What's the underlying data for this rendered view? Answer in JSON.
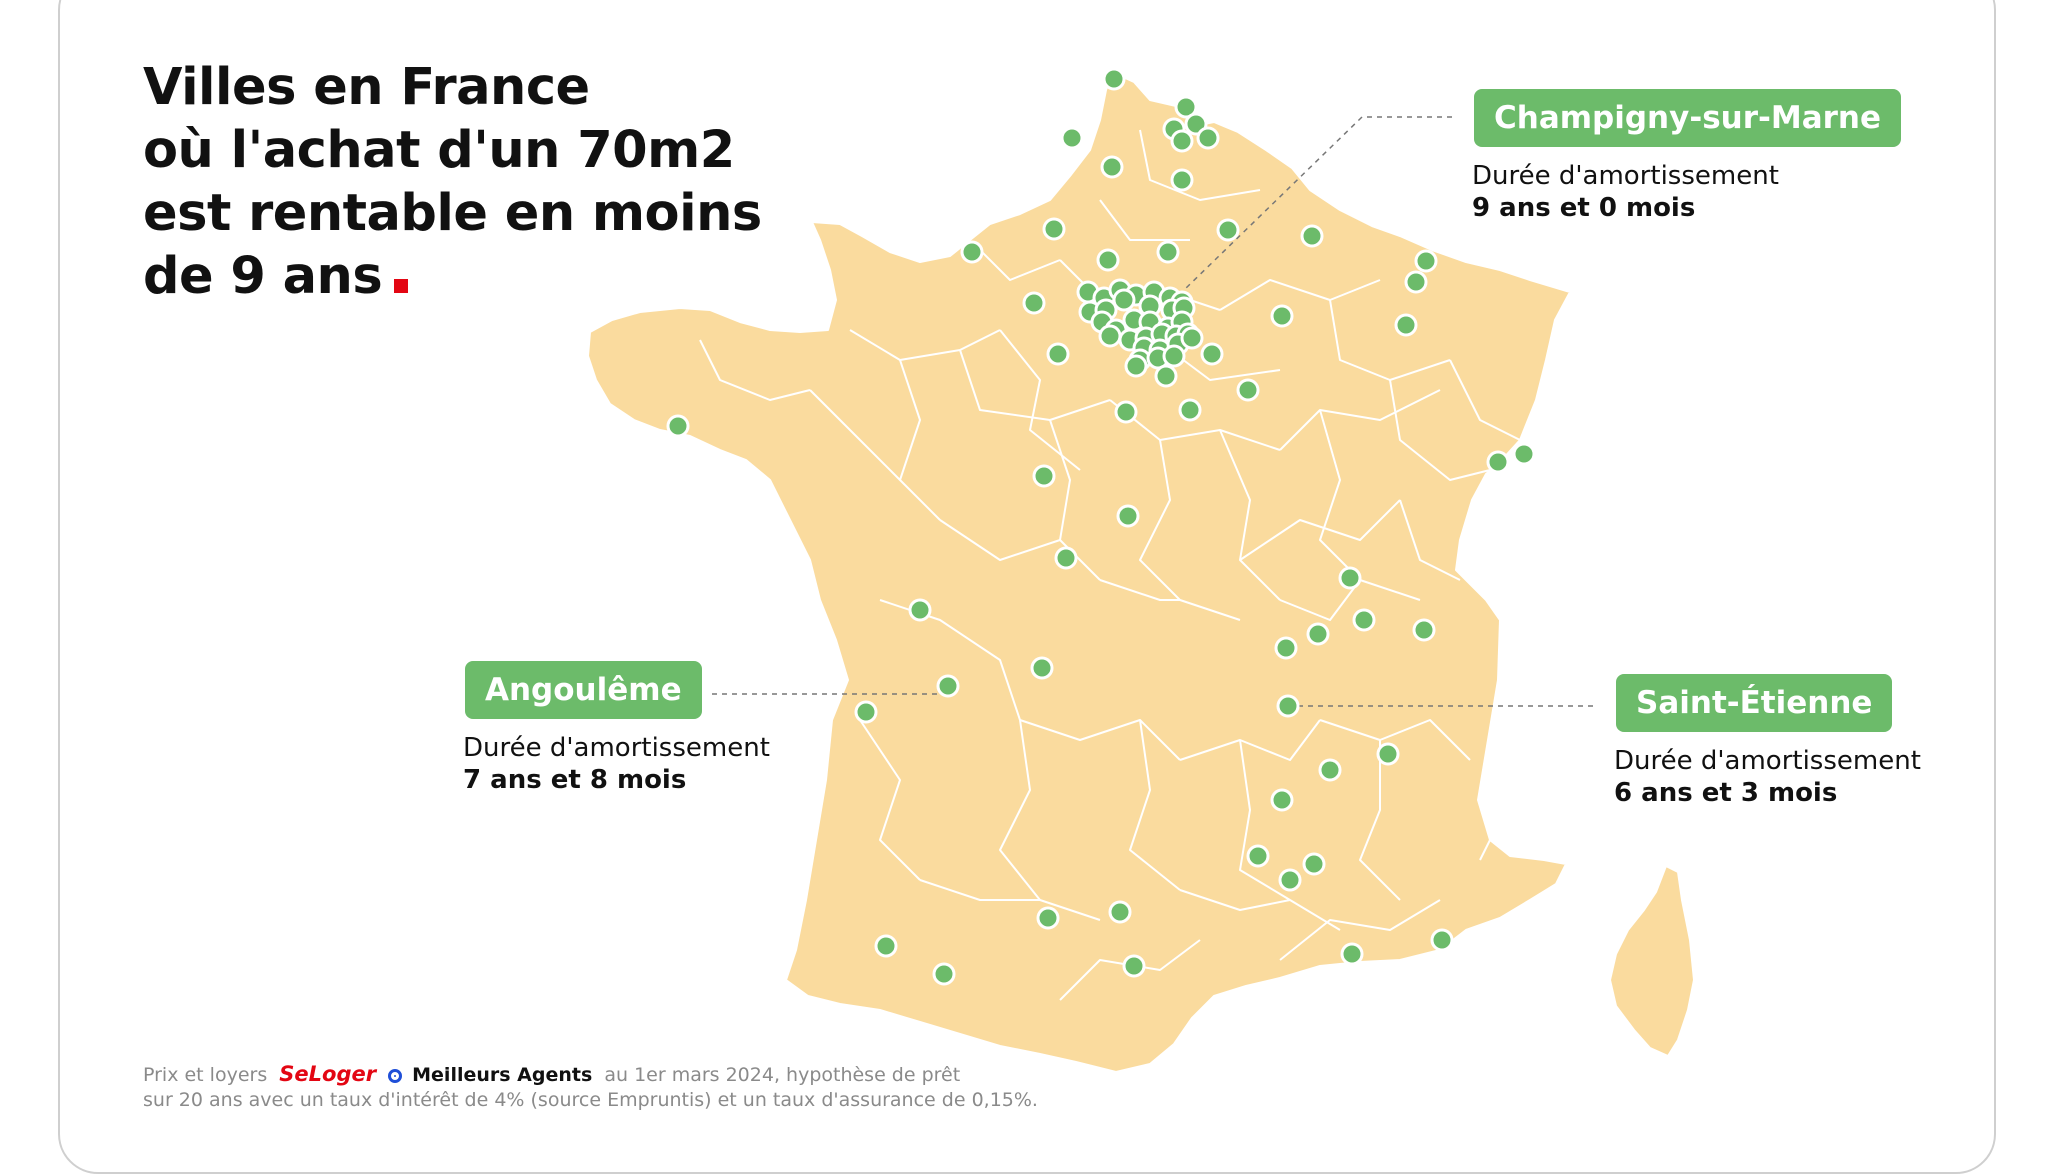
{
  "title": {
    "lines": [
      "Villes en France",
      "où l'achat d'un 70m2",
      "est rentable en moins",
      "de 9 ans"
    ]
  },
  "callouts": [
    {
      "city": "Champigny-sur-Marne",
      "label": "Durée d'amortissement",
      "value": "9 ans et 0 mois"
    },
    {
      "city": "Angoulême",
      "label": "Durée d'amortissement",
      "value": "7 ans et 8 mois"
    },
    {
      "city": "Saint-Étienne",
      "label": "Durée d'amortissement",
      "value": "6 ans et 3 mois"
    }
  ],
  "footer": {
    "prefix": "Prix et loyers",
    "brand1": "SeLoger",
    "brand2": "Meilleurs Agents",
    "line1_suffix": "au 1er mars 2024, hypothèse de prêt",
    "line2": "sur 20 ans avec un taux d'intérêt de 4% (source Empruntis) et un taux d'assurance de 0,15%."
  },
  "colors": {
    "land": "#fadb9e",
    "border": "#ffffff",
    "marker": "#6cbb6a",
    "accent": "#e30613"
  }
}
